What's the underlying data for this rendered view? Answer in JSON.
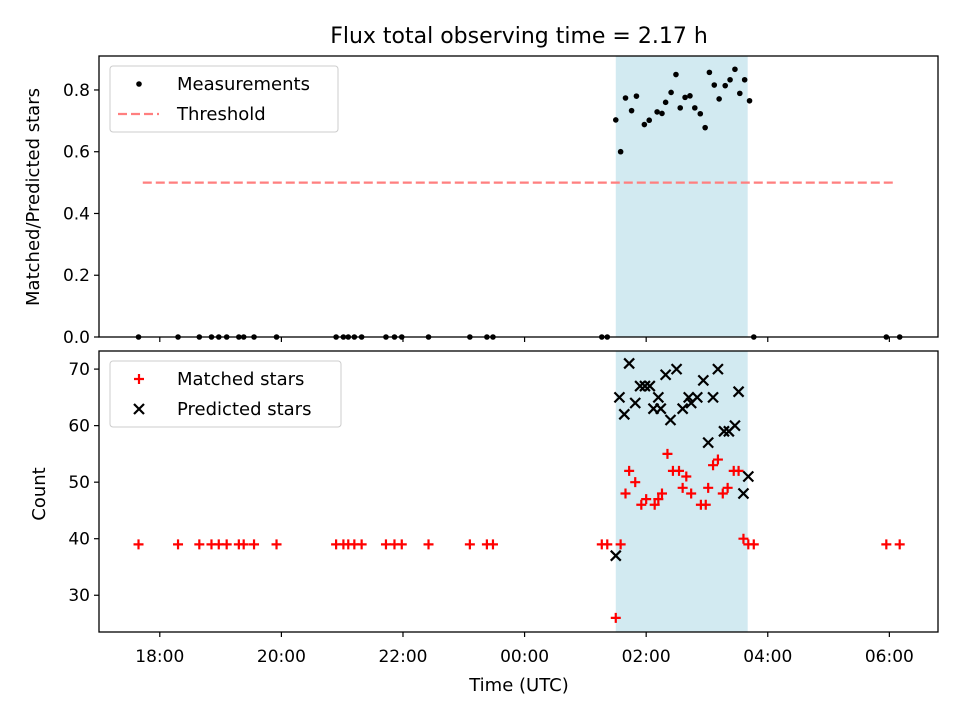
{
  "figure": {
    "title": "Flux total observing time = 2.17 h",
    "xlabel": "Time (UTC)"
  },
  "colors": {
    "measurement": "#000000",
    "threshold": "#ff7f7f",
    "matched": "#ff0000",
    "predicted": "#000000",
    "observing_window": "#add8e6"
  },
  "chart_data": [
    {
      "type": "scatter",
      "panel": "top",
      "title": "Flux total observing time = 2.17 h",
      "xlabel": "",
      "ylabel": "Matched/Predicted stars",
      "x_unit": "hours since 00:00 UTC of first night",
      "xlim": [
        17.0,
        30.8
      ],
      "ylim": [
        0.0,
        0.91
      ],
      "yticks": [
        0.0,
        0.2,
        0.4,
        0.6,
        0.8
      ],
      "ytick_labels": [
        "0.0",
        "0.2",
        "0.4",
        "0.6",
        "0.8"
      ],
      "legend": {
        "position": "top-left",
        "entries": [
          "Measurements",
          "Threshold"
        ]
      },
      "shaded_region": {
        "x": [
          25.5,
          27.67
        ]
      },
      "threshold": {
        "name": "Threshold",
        "value": 0.5,
        "x": [
          17.72,
          30.1
        ],
        "style": "dashed"
      },
      "series": [
        {
          "name": "Measurements",
          "marker": "dot",
          "points": [
            [
              17.65,
              0.0
            ],
            [
              18.3,
              0.0
            ],
            [
              18.65,
              0.0
            ],
            [
              18.85,
              0.0
            ],
            [
              18.97,
              0.0
            ],
            [
              19.1,
              0.0
            ],
            [
              19.3,
              0.0
            ],
            [
              19.38,
              0.0
            ],
            [
              19.55,
              0.0
            ],
            [
              19.92,
              0.0
            ],
            [
              20.9,
              0.0
            ],
            [
              21.02,
              0.0
            ],
            [
              21.1,
              0.0
            ],
            [
              21.2,
              0.0
            ],
            [
              21.32,
              0.0
            ],
            [
              21.72,
              0.0
            ],
            [
              21.86,
              0.0
            ],
            [
              21.98,
              0.0
            ],
            [
              22.42,
              0.0
            ],
            [
              23.1,
              0.0
            ],
            [
              23.38,
              0.0
            ],
            [
              23.48,
              0.0
            ],
            [
              25.27,
              0.0
            ],
            [
              25.36,
              0.0
            ],
            [
              25.5,
              0.703
            ],
            [
              25.58,
              0.6
            ],
            [
              25.66,
              0.774
            ],
            [
              25.76,
              0.733
            ],
            [
              25.84,
              0.78
            ],
            [
              25.97,
              0.688
            ],
            [
              26.05,
              0.702
            ],
            [
              26.18,
              0.729
            ],
            [
              26.26,
              0.724
            ],
            [
              26.32,
              0.76
            ],
            [
              26.41,
              0.792
            ],
            [
              26.49,
              0.85
            ],
            [
              26.56,
              0.742
            ],
            [
              26.64,
              0.776
            ],
            [
              26.72,
              0.781
            ],
            [
              26.8,
              0.742
            ],
            [
              26.89,
              0.723
            ],
            [
              26.97,
              0.678
            ],
            [
              27.04,
              0.857
            ],
            [
              27.12,
              0.816
            ],
            [
              27.2,
              0.771
            ],
            [
              27.3,
              0.814
            ],
            [
              27.38,
              0.833
            ],
            [
              27.46,
              0.867
            ],
            [
              27.54,
              0.789
            ],
            [
              27.62,
              0.833
            ],
            [
              27.7,
              0.765
            ],
            [
              27.77,
              0.0
            ],
            [
              29.95,
              0.0
            ],
            [
              30.17,
              0.0
            ]
          ]
        }
      ]
    },
    {
      "type": "scatter",
      "panel": "bottom",
      "xlabel": "Time (UTC)",
      "ylabel": "Count",
      "x_unit": "hours since 00:00 UTC of first night",
      "xlim": [
        17.0,
        30.8
      ],
      "ylim": [
        23.5,
        73.2
      ],
      "yticks": [
        30,
        40,
        50,
        60,
        70
      ],
      "ytick_labels": [
        "30",
        "40",
        "50",
        "60",
        "70"
      ],
      "xticks": [
        18,
        20,
        22,
        24,
        26,
        28,
        30
      ],
      "xtick_labels": [
        "18:00",
        "20:00",
        "22:00",
        "00:00",
        "02:00",
        "04:00",
        "06:00"
      ],
      "legend": {
        "position": "top-left",
        "entries": [
          "Matched stars",
          "Predicted stars"
        ]
      },
      "shaded_region": {
        "x": [
          25.5,
          27.67
        ]
      },
      "series": [
        {
          "name": "Matched stars",
          "marker": "plus",
          "points": [
            [
              17.65,
              39
            ],
            [
              18.3,
              39
            ],
            [
              18.65,
              39
            ],
            [
              18.85,
              39
            ],
            [
              18.97,
              39
            ],
            [
              19.1,
              39
            ],
            [
              19.3,
              39
            ],
            [
              19.38,
              39
            ],
            [
              19.55,
              39
            ],
            [
              19.92,
              39
            ],
            [
              20.9,
              39
            ],
            [
              21.02,
              39
            ],
            [
              21.1,
              39
            ],
            [
              21.2,
              39
            ],
            [
              21.32,
              39
            ],
            [
              21.72,
              39
            ],
            [
              21.86,
              39
            ],
            [
              21.98,
              39
            ],
            [
              22.42,
              39
            ],
            [
              23.1,
              39
            ],
            [
              23.38,
              39
            ],
            [
              23.48,
              39
            ],
            [
              25.27,
              39
            ],
            [
              25.36,
              39
            ],
            [
              25.5,
              26
            ],
            [
              25.58,
              39
            ],
            [
              25.66,
              48
            ],
            [
              25.72,
              52
            ],
            [
              25.82,
              50
            ],
            [
              25.92,
              46
            ],
            [
              26.0,
              47
            ],
            [
              26.14,
              46
            ],
            [
              26.2,
              47
            ],
            [
              26.26,
              48
            ],
            [
              26.35,
              55
            ],
            [
              26.44,
              52
            ],
            [
              26.54,
              52
            ],
            [
              26.6,
              49
            ],
            [
              26.66,
              51
            ],
            [
              26.74,
              48
            ],
            [
              26.9,
              46
            ],
            [
              26.98,
              46
            ],
            [
              27.02,
              49
            ],
            [
              27.1,
              53
            ],
            [
              27.18,
              54
            ],
            [
              27.26,
              48
            ],
            [
              27.34,
              49
            ],
            [
              27.44,
              52
            ],
            [
              27.52,
              52
            ],
            [
              27.6,
              40
            ],
            [
              27.68,
              39
            ],
            [
              27.77,
              39
            ],
            [
              29.95,
              39
            ],
            [
              30.17,
              39
            ]
          ]
        },
        {
          "name": "Predicted stars",
          "marker": "x",
          "points": [
            [
              25.5,
              37
            ],
            [
              25.56,
              65
            ],
            [
              25.64,
              62
            ],
            [
              25.72,
              71
            ],
            [
              25.82,
              64
            ],
            [
              25.9,
              67
            ],
            [
              25.98,
              67
            ],
            [
              26.06,
              67
            ],
            [
              26.12,
              63
            ],
            [
              26.2,
              65
            ],
            [
              26.24,
              63
            ],
            [
              26.32,
              69
            ],
            [
              26.4,
              61
            ],
            [
              26.5,
              70
            ],
            [
              26.6,
              63
            ],
            [
              26.7,
              65
            ],
            [
              26.74,
              64
            ],
            [
              26.84,
              65
            ],
            [
              26.94,
              68
            ],
            [
              27.02,
              57
            ],
            [
              27.1,
              65
            ],
            [
              27.18,
              70
            ],
            [
              27.28,
              59
            ],
            [
              27.36,
              59
            ],
            [
              27.46,
              60
            ],
            [
              27.52,
              66
            ],
            [
              27.6,
              48
            ],
            [
              27.68,
              51
            ]
          ]
        }
      ]
    }
  ]
}
